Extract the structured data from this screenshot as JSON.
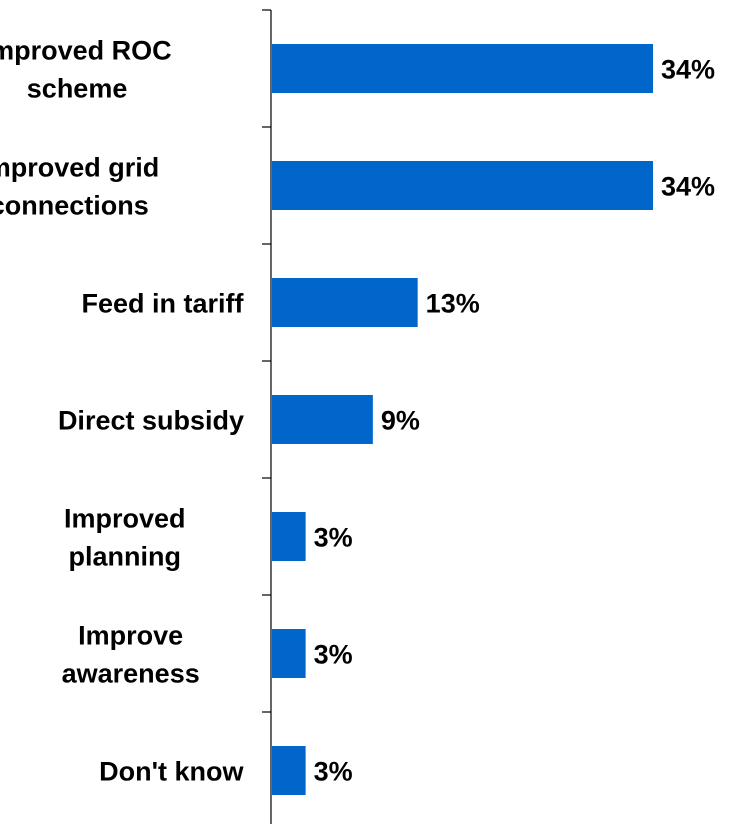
{
  "chart_data": {
    "type": "bar",
    "orientation": "horizontal",
    "categories": [
      "Improved ROC scheme",
      "Improved grid connections",
      "Feed in tariff",
      "Direct subsidy",
      "Improved planning",
      "Improve awareness",
      "Don't know"
    ],
    "category_lines": [
      [
        "Improved ROC",
        "scheme"
      ],
      [
        "Improved grid",
        "connections"
      ],
      [
        "Feed in tariff"
      ],
      [
        "Direct subsidy"
      ],
      [
        "Improved",
        "planning"
      ],
      [
        "Improve",
        "awareness"
      ],
      [
        "Don't know"
      ]
    ],
    "values": [
      34,
      34,
      13,
      9,
      3,
      3,
      3
    ],
    "value_labels": [
      "34%",
      "34%",
      "13%",
      "9%",
      "3%",
      "3%",
      "3%"
    ],
    "unit": "%",
    "bar_color": "#0066CC",
    "grid": false,
    "legend": "none"
  }
}
